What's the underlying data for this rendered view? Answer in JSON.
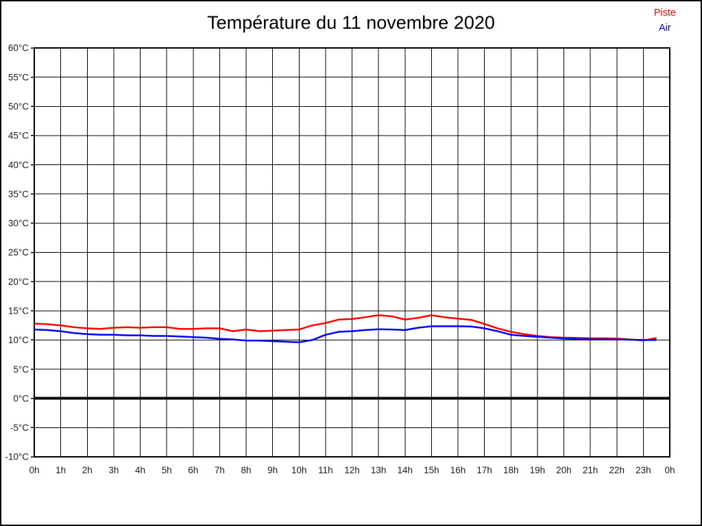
{
  "title": "Température du 11 novembre 2020",
  "legend": [
    {
      "label": "Piste",
      "color": "#ff0000"
    },
    {
      "label": "Air",
      "color": "#0000ff"
    }
  ],
  "colors": {
    "grid": "#000000",
    "frame": "#000000",
    "zero_line": "#000000",
    "tick_text": "#1a1a1a",
    "background": "#ffffff"
  },
  "chart_data": {
    "type": "line",
    "title": "Température du 11 novembre 2020",
    "xlabel": "",
    "ylabel": "",
    "xlim": [
      0,
      24
    ],
    "ylim": [
      -10,
      60
    ],
    "x_step": 1,
    "y_step": 5,
    "grid": true,
    "legend_position": "top-right",
    "x_tick_labels": [
      "0h",
      "1h",
      "2h",
      "3h",
      "4h",
      "5h",
      "6h",
      "7h",
      "8h",
      "9h",
      "10h",
      "11h",
      "12h",
      "13h",
      "14h",
      "15h",
      "16h",
      "17h",
      "18h",
      "19h",
      "20h",
      "21h",
      "22h",
      "23h",
      "0h"
    ],
    "y_tick_labels": [
      "60°C",
      "55°C",
      "50°C",
      "45°C",
      "40°C",
      "35°C",
      "30°C",
      "25°C",
      "20°C",
      "15°C",
      "10°C",
      "5°C",
      "0°C",
      "-5°C",
      "-10°C"
    ],
    "zero_line": {
      "value": 0,
      "width": 4
    },
    "series": [
      {
        "name": "Piste",
        "color": "#ff0000",
        "x": [
          0,
          0.5,
          1,
          1.5,
          2,
          2.5,
          3,
          3.5,
          4,
          4.5,
          5,
          5.5,
          6,
          6.5,
          7,
          7.5,
          8,
          8.5,
          9,
          9.5,
          10,
          10.5,
          11,
          11.5,
          12,
          12.5,
          13,
          13.5,
          14,
          14.5,
          15,
          15.5,
          16,
          16.5,
          17,
          17.5,
          18,
          18.5,
          19,
          19.5,
          20,
          20.5,
          21,
          21.5,
          22,
          22.5,
          23,
          23.5
        ],
        "values": [
          12.8,
          12.7,
          12.5,
          12.2,
          12.0,
          11.9,
          12.1,
          12.2,
          12.1,
          12.2,
          12.2,
          11.9,
          11.9,
          12.0,
          12.0,
          11.5,
          11.8,
          11.5,
          11.6,
          11.7,
          11.8,
          12.5,
          12.9,
          13.5,
          13.6,
          13.9,
          14.25,
          14.05,
          13.5,
          13.8,
          14.25,
          13.9,
          13.65,
          13.45,
          12.75,
          12.0,
          11.4,
          11.0,
          10.7,
          10.5,
          10.4,
          10.35,
          10.3,
          10.3,
          10.25,
          10.1,
          9.9,
          10.35
        ]
      },
      {
        "name": "Air",
        "color": "#0000ff",
        "x": [
          0,
          0.5,
          1,
          1.5,
          2,
          2.5,
          3,
          3.5,
          4,
          4.5,
          5,
          5.5,
          6,
          6.5,
          7,
          7.5,
          8,
          8.5,
          9,
          9.5,
          10,
          10.5,
          11,
          11.5,
          12,
          12.5,
          13,
          13.5,
          14,
          14.5,
          15,
          15.5,
          16,
          16.5,
          17,
          17.5,
          18,
          18.5,
          19,
          19.5,
          20,
          20.5,
          21,
          21.5,
          22,
          22.5,
          23,
          23.5
        ],
        "values": [
          11.8,
          11.7,
          11.5,
          11.2,
          11.0,
          10.9,
          10.9,
          10.8,
          10.8,
          10.7,
          10.7,
          10.6,
          10.5,
          10.4,
          10.2,
          10.1,
          9.9,
          9.9,
          9.8,
          9.7,
          9.6,
          10.0,
          10.9,
          11.4,
          11.5,
          11.7,
          11.85,
          11.8,
          11.7,
          12.1,
          12.35,
          12.35,
          12.35,
          12.3,
          12.0,
          11.5,
          10.9,
          10.7,
          10.55,
          10.4,
          10.25,
          10.2,
          10.1,
          10.1,
          10.1,
          10.05,
          10.0,
          10.0
        ]
      }
    ]
  }
}
